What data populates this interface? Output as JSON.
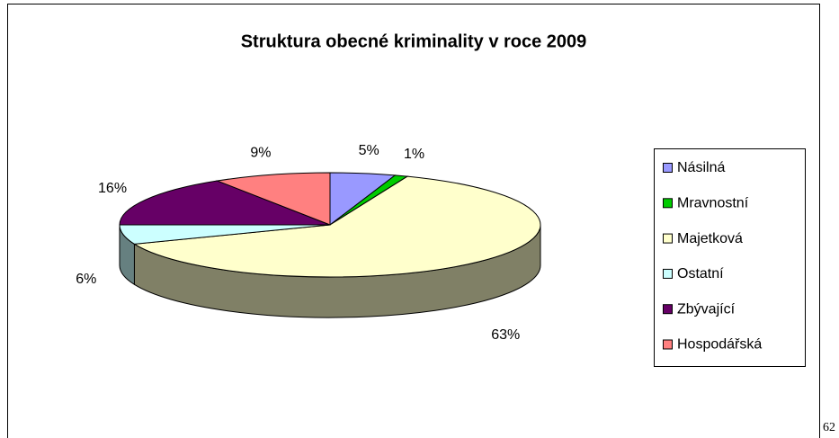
{
  "chart_data": {
    "type": "pie",
    "title": "Struktura obecné kriminality v roce 2009",
    "categories": [
      "Násilná",
      "Mravnostní",
      "Majetková",
      "Ostatní",
      "Zbývající",
      "Hospodářská"
    ],
    "values": [
      5,
      1,
      63,
      6,
      16,
      9
    ],
    "value_labels": [
      "5%",
      "1%",
      "63%",
      "6%",
      "16%",
      "9%"
    ],
    "colors": [
      "#9999ff",
      "#00cc00",
      "#ffffcc",
      "#ccffff",
      "#660066",
      "#ff8080"
    ],
    "legend": "right"
  },
  "page_number": "62"
}
